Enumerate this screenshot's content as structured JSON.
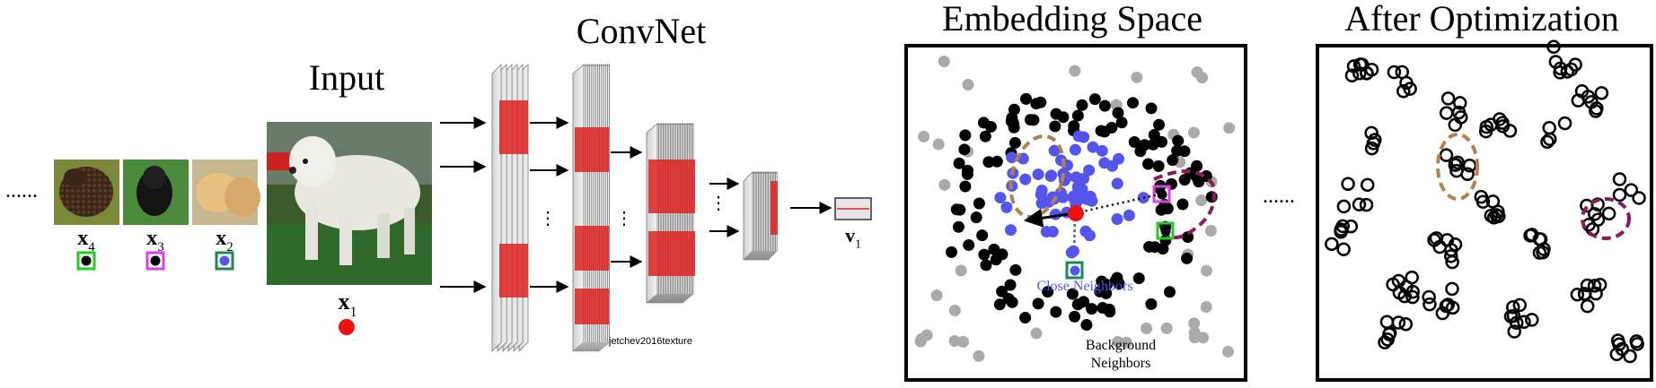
{
  "labels": {
    "input_title": "Input",
    "convnet_title": "ConvNet",
    "embedding_title": "Embedding Space",
    "after_title": "After Optimization",
    "close_neighbors": "Close Neighbors",
    "background_line1": "Background",
    "background_line2": "Neighbors",
    "watermark": "jetchev2016texture",
    "ellipsis": "......",
    "vdots": "⋮"
  },
  "inputs": [
    {
      "var": "x",
      "sub": "4",
      "box_color": "#22cc22",
      "dot_color": "#000000"
    },
    {
      "var": "x",
      "sub": "3",
      "box_color": "#e040e0",
      "dot_color": "#000000"
    },
    {
      "var": "x",
      "sub": "2",
      "box_color": "#1a8a5a",
      "dot_color": "#5555ee"
    }
  ],
  "main_input": {
    "var": "x",
    "sub": "1",
    "dot_color": "#ee1111"
  },
  "output": {
    "var": "v",
    "sub": "1"
  },
  "colors": {
    "close": "#5555ee",
    "background": "#000000",
    "other": "#aaaaaa",
    "query": "#ee1111",
    "cluster_brown": "#b08050",
    "cluster_magenta": "#8a1a5a",
    "fmap_red": "#dd2222"
  }
}
